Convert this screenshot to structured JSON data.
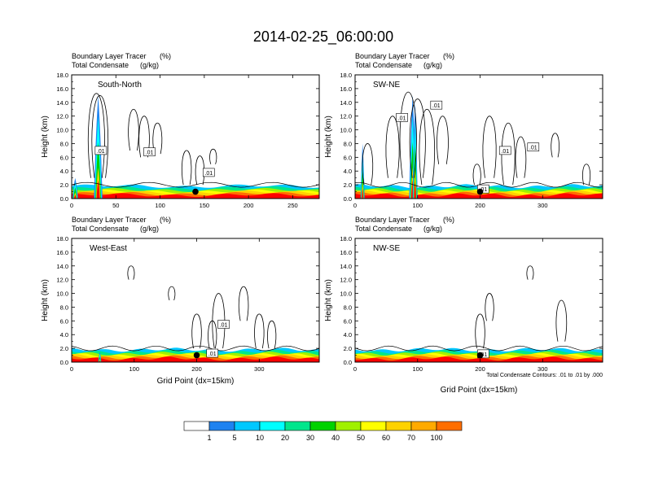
{
  "chart_data": {
    "type": "heatmap",
    "title": "2014-02-25_06:00:00",
    "shade_label": "Boundary Layer Tracer",
    "shade_units": "(%)",
    "contour_label": "Total Condensate",
    "contour_units": "(g/kg)",
    "ylabel": "Height (km)",
    "xlabel": "Grid Point (dx=15km)",
    "contour_note": "Total Condensate Contours: .01 to .01 by .000",
    "ylim": [
      0,
      18
    ],
    "yticks": [
      "0.0",
      "2.0",
      "4.0",
      "6.0",
      "8.0",
      "10.0",
      "12.0",
      "14.0",
      "16.0",
      "18.0"
    ],
    "panels": [
      {
        "name": "South-North",
        "xlim": [
          0,
          280
        ],
        "xticks": [
          0,
          50,
          100,
          150,
          200,
          250
        ],
        "plumes": [
          {
            "x": 30,
            "top": 15.0,
            "width": 6
          },
          {
            "x": 4,
            "top": 3.0,
            "width": 4
          }
        ],
        "cloud_segments": [
          {
            "x": 28,
            "ymin": 3,
            "ymax": 15.3
          },
          {
            "x": 32,
            "ymin": 3,
            "ymax": 15.0
          },
          {
            "x": 70,
            "ymin": 7,
            "ymax": 13
          },
          {
            "x": 82,
            "ymin": 6,
            "ymax": 12
          },
          {
            "x": 97,
            "ymin": 6.5,
            "ymax": 11
          },
          {
            "x": 130,
            "ymin": 2,
            "ymax": 7
          },
          {
            "x": 145,
            "ymin": 2,
            "ymax": 6.2
          },
          {
            "x": 160,
            "ymin": 5,
            "ymax": 7.2
          }
        ],
        "labels": [
          {
            "x": 33,
            "y": 7.0,
            "text": ".01"
          },
          {
            "x": 88,
            "y": 6.8,
            "text": ".01"
          },
          {
            "x": 155,
            "y": 3.8,
            "text": ".01"
          }
        ],
        "marker": {
          "x": 140,
          "y": 1.0
        }
      },
      {
        "name": "SW-NE",
        "xlim": [
          0,
          396
        ],
        "xticks": [
          0,
          100,
          200,
          300
        ],
        "plumes": [
          {
            "x": 12,
            "top": 8.0,
            "width": 4
          },
          {
            "x": 92,
            "top": 15.0,
            "width": 7
          },
          {
            "x": 96,
            "top": 14.0,
            "width": 5
          }
        ],
        "cloud_segments": [
          {
            "x": 20,
            "ymin": 2,
            "ymax": 8
          },
          {
            "x": 60,
            "ymin": 3,
            "ymax": 12
          },
          {
            "x": 85,
            "ymin": 3,
            "ymax": 15.5
          },
          {
            "x": 100,
            "ymin": 3,
            "ymax": 14.5
          },
          {
            "x": 115,
            "ymin": 2,
            "ymax": 13
          },
          {
            "x": 140,
            "ymin": 5,
            "ymax": 12
          },
          {
            "x": 195,
            "ymin": 2,
            "ymax": 5
          },
          {
            "x": 215,
            "ymin": 3,
            "ymax": 12
          },
          {
            "x": 245,
            "ymin": 2,
            "ymax": 11
          },
          {
            "x": 265,
            "ymin": 3,
            "ymax": 9
          },
          {
            "x": 320,
            "ymin": 6,
            "ymax": 9.5
          },
          {
            "x": 370,
            "ymin": 2,
            "ymax": 5
          }
        ],
        "labels": [
          {
            "x": 75,
            "y": 11.8,
            "text": ".01"
          },
          {
            "x": 130,
            "y": 13.6,
            "text": ".01"
          },
          {
            "x": 240,
            "y": 7.0,
            "text": ".01"
          },
          {
            "x": 285,
            "y": 7.5,
            "text": ".01"
          },
          {
            "x": 205,
            "y": 1.4,
            "text": ".01"
          }
        ],
        "marker": {
          "x": 200,
          "y": 1.0
        }
      },
      {
        "name": "West-East",
        "xlim": [
          0,
          396
        ],
        "xticks": [
          0,
          100,
          200,
          300
        ],
        "plumes": [
          {
            "x": 45,
            "top": 1.5,
            "width": 3
          }
        ],
        "cloud_segments": [
          {
            "x": 95,
            "ymin": 12,
            "ymax": 14
          },
          {
            "x": 160,
            "ymin": 9,
            "ymax": 11
          },
          {
            "x": 200,
            "ymin": 2,
            "ymax": 7
          },
          {
            "x": 225,
            "ymin": 2,
            "ymax": 6
          },
          {
            "x": 235,
            "ymin": 2,
            "ymax": 10
          },
          {
            "x": 275,
            "ymin": 6,
            "ymax": 11
          },
          {
            "x": 300,
            "ymin": 2,
            "ymax": 7
          },
          {
            "x": 320,
            "ymin": 2,
            "ymax": 6
          }
        ],
        "labels": [
          {
            "x": 243,
            "y": 5.5,
            "text": ".01"
          },
          {
            "x": 225,
            "y": 1.3,
            "text": ".01"
          }
        ],
        "marker": {
          "x": 200,
          "y": 1.0
        }
      },
      {
        "name": "NW-SE",
        "xlim": [
          0,
          396
        ],
        "xticks": [
          0,
          100,
          200,
          300
        ],
        "plumes": [],
        "cloud_segments": [
          {
            "x": 200,
            "ymin": 2,
            "ymax": 7
          },
          {
            "x": 215,
            "ymin": 6,
            "ymax": 10
          },
          {
            "x": 280,
            "ymin": 12,
            "ymax": 14
          },
          {
            "x": 330,
            "ymin": 3,
            "ymax": 9
          }
        ],
        "labels": [
          {
            "x": 205,
            "y": 1.2,
            "text": ".01"
          }
        ],
        "marker": {
          "x": 200,
          "y": 1.0
        }
      }
    ],
    "colorbar": {
      "labels": [
        "1",
        "5",
        "10",
        "20",
        "30",
        "40",
        "50",
        "60",
        "70",
        "100"
      ],
      "colors": [
        "#ffffff",
        "#1e82f0",
        "#00c8ff",
        "#00ffff",
        "#00e68c",
        "#00d200",
        "#a0f000",
        "#ffff00",
        "#ffd200",
        "#ffaa00",
        "#ff6e00",
        "#ff0000"
      ]
    }
  }
}
